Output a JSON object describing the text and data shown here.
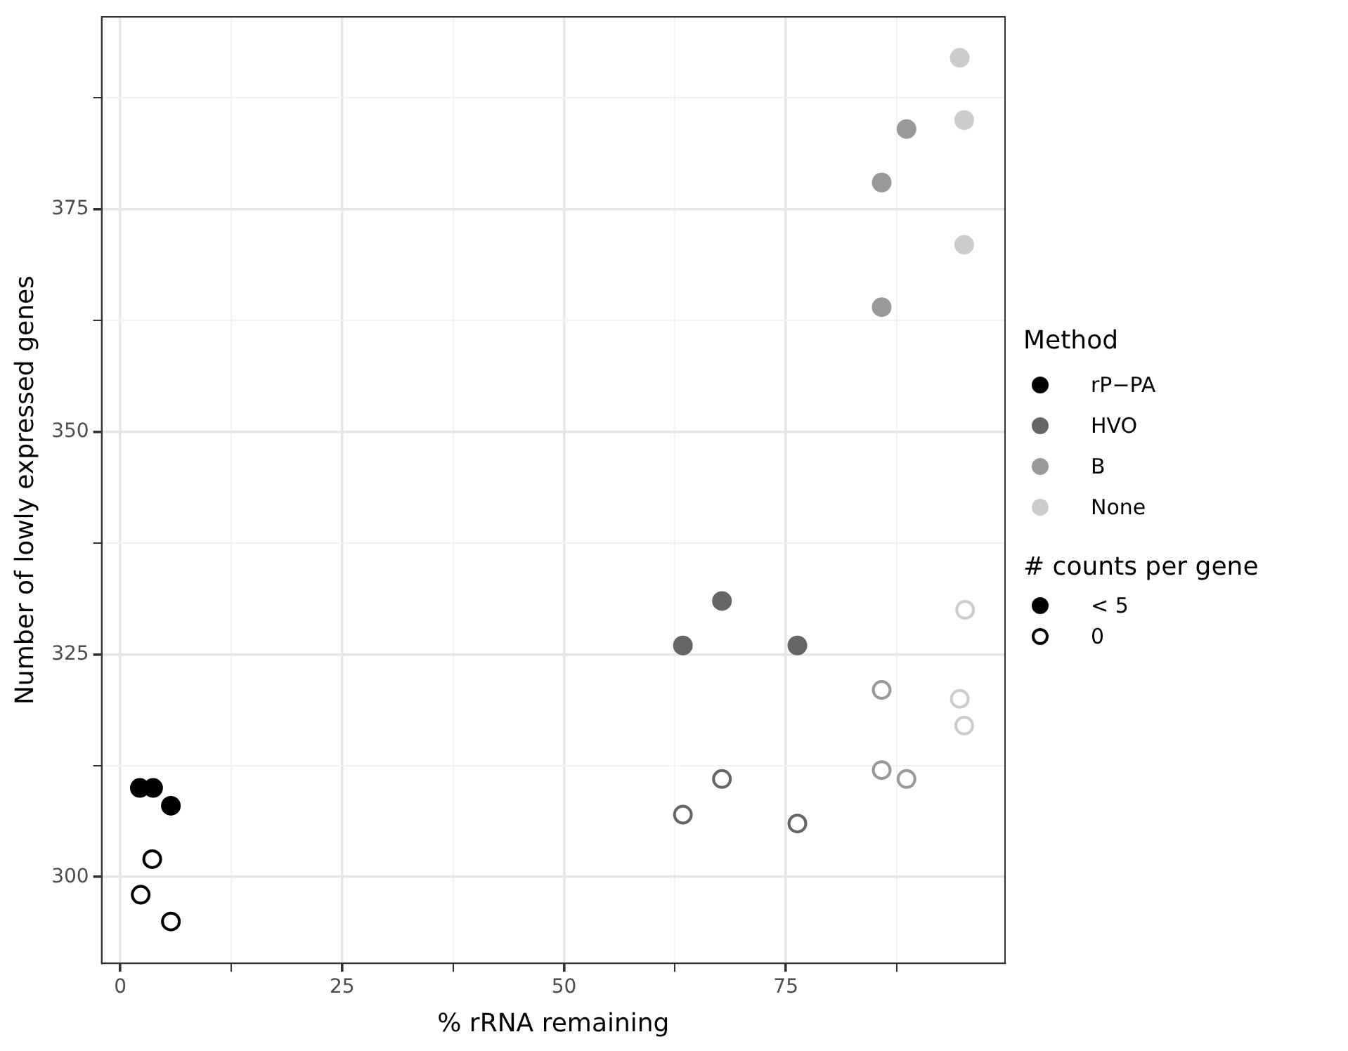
{
  "chart_data": {
    "type": "scatter",
    "xlabel": "% rRNA remaining",
    "ylabel": "Number of lowly expressed genes",
    "legend_title": "Method",
    "legend": "right",
    "grid": true,
    "marker": "circle",
    "xlim": [
      -2.1,
      99.7
    ],
    "ylim": [
      290.3,
      396.6
    ],
    "xticks": [
      0,
      {
        "value": 12.5,
        "label": null
      },
      25,
      {
        "value": 37.5,
        "label": null
      },
      50,
      {
        "value": 62.5,
        "label": null
      },
      75,
      {
        "value": 87.5,
        "label": null
      }
    ],
    "yticks": [
      300,
      {
        "value": 312.5,
        "label": null
      },
      325,
      {
        "value": 337.5,
        "label": null
      },
      350,
      {
        "value": 362.5,
        "label": null
      },
      375,
      {
        "value": 387.5,
        "label": null
      }
    ],
    "annotations": [
      "# counts per gene",
      "< 5",
      "0"
    ],
    "series": [
      {
        "name": "rP−PA",
        "color": "#000000",
        "x": [
          2.2,
          3.7,
          5.7
        ],
        "values": [
          310,
          310,
          308
        ]
      },
      {
        "name": "HVO",
        "color": "#666666",
        "x": [
          63.4,
          67.8,
          76.3
        ],
        "values": [
          326,
          331,
          326
        ]
      },
      {
        "name": "B",
        "color": "#999999",
        "x": [
          85.8,
          85.8,
          88.6
        ],
        "values": [
          364,
          378,
          384
        ]
      },
      {
        "name": "None",
        "color": "#cccccc",
        "x": [
          94.6,
          95.1,
          95.1
        ],
        "values": [
          392,
          385,
          371
        ]
      },
      {
        "color": "#000000",
        "colors": [
          "#ffffff",
          "#ffffff",
          "#ffffff"
        ],
        "x": [
          2.3,
          3.6,
          5.7
        ],
        "values": [
          298,
          302,
          295
        ]
      },
      {
        "color": "#666666",
        "colors": [
          "#ffffff",
          "#ffffff",
          "#ffffff"
        ],
        "x": [
          63.4,
          67.8,
          76.3
        ],
        "values": [
          307,
          311,
          306
        ]
      },
      {
        "color": "#999999",
        "colors": [
          "#ffffff",
          "#ffffff",
          "#ffffff"
        ],
        "x": [
          85.8,
          85.8,
          88.6
        ],
        "values": [
          321,
          312,
          311
        ]
      },
      {
        "color": "#cccccc",
        "colors": [
          "#ffffff",
          "#ffffff",
          "#ffffff"
        ],
        "x": [
          95.2,
          94.6,
          95.1
        ],
        "values": [
          330,
          320,
          317
        ]
      }
    ]
  }
}
